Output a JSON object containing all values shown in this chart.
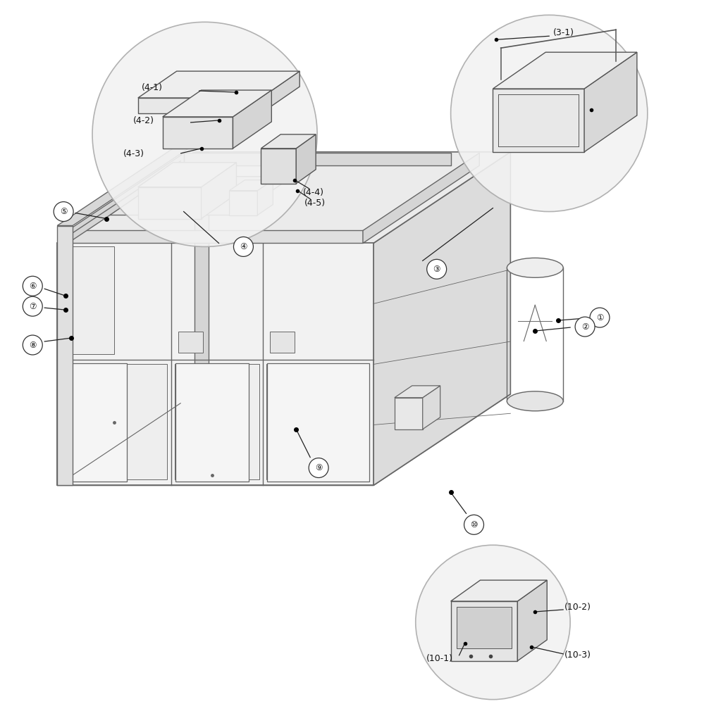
{
  "bg_color": "#ffffff",
  "line_color": "#888888",
  "dark_line": "#222222",
  "label_color": "#111111",
  "circle_fill": "#f0f0f0",
  "circle_edge": "#aaaaaa",
  "dot_color": "#000000",
  "machine_face_color": "#f0f0f0",
  "machine_side_color": "#e0e0e0",
  "machine_top_color": "#e8e8e8",
  "machine_edge_color": "#666666"
}
